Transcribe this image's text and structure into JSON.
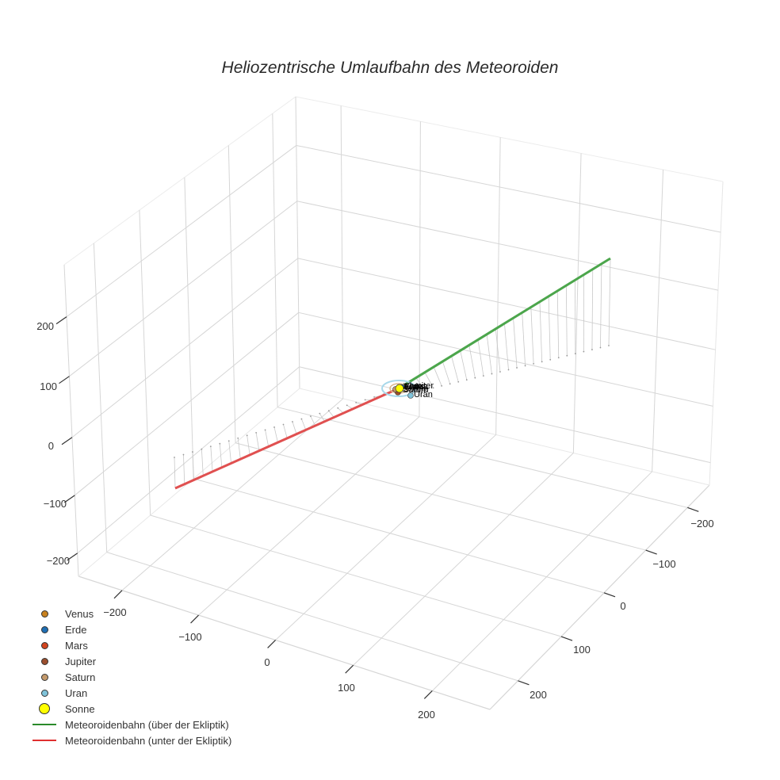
{
  "chart_data": {
    "type": "scatter3d",
    "title": "Heliozentrische Umlaufbahn des Meteoroiden",
    "axes": {
      "x": {
        "ticks": [
          -200,
          -100,
          0,
          100,
          200
        ],
        "range": [
          -260,
          270
        ]
      },
      "y": {
        "ticks": [
          -200,
          -100,
          0,
          100,
          200
        ],
        "range": [
          -280,
          285
        ]
      },
      "z": {
        "ticks": [
          -200,
          -100,
          0,
          100,
          200
        ],
        "range": [
          -220,
          310
        ]
      }
    },
    "grid": true,
    "legend_position": "bottom-left",
    "series": [
      {
        "name": "Venus",
        "kind": "marker",
        "color": "#c8811e",
        "position": [
          0.5,
          0.5,
          0
        ]
      },
      {
        "name": "Erde",
        "kind": "marker",
        "color": "#1f6fb4",
        "position": [
          1,
          0,
          0
        ]
      },
      {
        "name": "Mars",
        "kind": "marker",
        "color": "#d2441e",
        "position": [
          -1.2,
          0.8,
          0
        ]
      },
      {
        "name": "Jupiter",
        "kind": "marker",
        "color": "#9b4f2e",
        "position": [
          -4,
          3,
          0
        ]
      },
      {
        "name": "Saturn",
        "kind": "marker",
        "color": "#c49a6c",
        "position": [
          -7,
          6,
          0
        ]
      },
      {
        "name": "Uran",
        "kind": "marker",
        "color": "#7fc3da",
        "position": [
          12,
          -12,
          0
        ]
      },
      {
        "name": "Sonne",
        "kind": "marker",
        "color": "#ffff00",
        "position": [
          0,
          0,
          0
        ]
      },
      {
        "name": "Meteoroidenbahn (über der Ekliptik)",
        "kind": "line",
        "color": "#4ca64c",
        "start": [
          0,
          0,
          0
        ],
        "end": [
          -150,
          -330,
          240
        ]
      },
      {
        "name": "Meteoroidenbahn (unter der Ekliptik)",
        "kind": "line",
        "color": "#e05050",
        "start": [
          0,
          0,
          0
        ],
        "end": [
          150,
          330,
          -240
        ]
      }
    ],
    "orbit_rings": [
      {
        "planet": "Uran",
        "color": "#a8d8ea",
        "radius_px": [
          22,
          10
        ]
      },
      {
        "planet": "Saturn",
        "color": "#d9b48a",
        "radius_px": [
          11,
          5
        ]
      }
    ]
  },
  "title": "Heliozentrische Umlaufbahn des Meteoroiden",
  "z_ticks": [
    "200",
    "100",
    "0",
    "−100",
    "−200"
  ],
  "x_ticks": [
    "−200",
    "−100",
    "0",
    "100",
    "200"
  ],
  "y_ticks": [
    "−200",
    "−100",
    "0",
    "100",
    "200"
  ],
  "point_labels": [
    "Venus",
    "Erde",
    "Mars",
    "Jupiter",
    "Saturn",
    "Uran",
    "Sonne"
  ],
  "legend": [
    {
      "label": "Venus",
      "type": "dot",
      "color": "#c8811e",
      "size": 9
    },
    {
      "label": "Erde",
      "type": "dot",
      "color": "#1f6fb4",
      "size": 9
    },
    {
      "label": "Mars",
      "type": "dot",
      "color": "#d2441e",
      "size": 9
    },
    {
      "label": "Jupiter",
      "type": "dot",
      "color": "#9b4f2e",
      "size": 9
    },
    {
      "label": "Saturn",
      "type": "dot",
      "color": "#c49a6c",
      "size": 9
    },
    {
      "label": "Uran",
      "type": "dot",
      "color": "#7fc3da",
      "size": 9
    },
    {
      "label": "Sonne",
      "type": "dot",
      "color": "#ffff00",
      "size": 14
    },
    {
      "label": "Meteoroidenbahn (über der Ekliptik)",
      "type": "line",
      "color": "#2a8a2a"
    },
    {
      "label": "Meteoroidenbahn (unter der Ekliptik)",
      "type": "line",
      "color": "#e03030"
    }
  ]
}
